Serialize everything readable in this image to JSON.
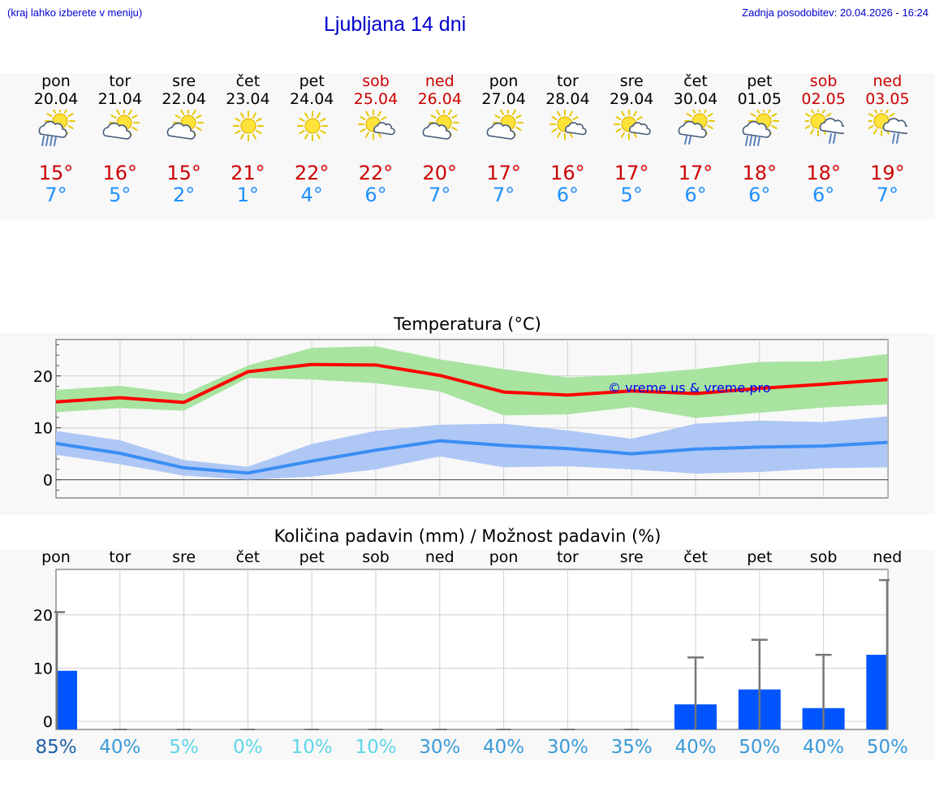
{
  "header": {
    "note": "(kraj lahko izberete v meniju)",
    "title": "Ljubljana 14 dni",
    "updated": "Zadnja posodobitev: 20.04.2026 - 16:24"
  },
  "colors": {
    "max": "#cc0000",
    "min": "#1e90ff",
    "weekend": "#cc0000",
    "link": "#0000cc",
    "precip_bar": "#0055ff"
  },
  "days": [
    {
      "name": "pon",
      "date": "20.04",
      "weekend": false,
      "icon": "sun-cloud-rain-icon",
      "max": "15°",
      "min": "7°"
    },
    {
      "name": "tor",
      "date": "21.04",
      "weekend": false,
      "icon": "sun-cloud-icon",
      "max": "16°",
      "min": "5°"
    },
    {
      "name": "sre",
      "date": "22.04",
      "weekend": false,
      "icon": "sun-cloud-icon",
      "max": "15°",
      "min": "2°"
    },
    {
      "name": "čet",
      "date": "23.04",
      "weekend": false,
      "icon": "sun-icon",
      "max": "21°",
      "min": "1°"
    },
    {
      "name": "pet",
      "date": "24.04",
      "weekend": false,
      "icon": "sun-icon",
      "max": "22°",
      "min": "4°"
    },
    {
      "name": "sob",
      "date": "25.04",
      "weekend": true,
      "icon": "sun-small-cloud-icon",
      "max": "22°",
      "min": "6°"
    },
    {
      "name": "ned",
      "date": "26.04",
      "weekend": true,
      "icon": "sun-cloud-icon",
      "max": "20°",
      "min": "7°"
    },
    {
      "name": "pon",
      "date": "27.04",
      "weekend": false,
      "icon": "sun-cloud-icon",
      "max": "17°",
      "min": "7°"
    },
    {
      "name": "tor",
      "date": "28.04",
      "weekend": false,
      "icon": "sun-small-cloud-icon",
      "max": "16°",
      "min": "6°"
    },
    {
      "name": "sre",
      "date": "29.04",
      "weekend": false,
      "icon": "sun-small-cloud-icon",
      "max": "17°",
      "min": "5°"
    },
    {
      "name": "čet",
      "date": "30.04",
      "weekend": false,
      "icon": "sun-cloud-light-rain-icon",
      "max": "17°",
      "min": "6°"
    },
    {
      "name": "pet",
      "date": "01.05",
      "weekend": false,
      "icon": "sun-cloud-rain-icon",
      "max": "18°",
      "min": "6°"
    },
    {
      "name": "sob",
      "date": "02.05",
      "weekend": true,
      "icon": "sun-cloud-shower-icon",
      "max": "18°",
      "min": "6°"
    },
    {
      "name": "ned",
      "date": "03.05",
      "weekend": true,
      "icon": "sun-cloud-shower-icon",
      "max": "19°",
      "min": "7°"
    }
  ],
  "chart_data": [
    {
      "type": "line",
      "title": "Temperatura (°C)",
      "watermark": "© vreme.us & vreme.pro",
      "x": [
        "20.04",
        "21.04",
        "22.04",
        "23.04",
        "24.04",
        "25.04",
        "26.04",
        "27.04",
        "28.04",
        "29.04",
        "30.04",
        "01.05",
        "02.05",
        "03.05"
      ],
      "ylim": [
        -3.5,
        27
      ],
      "yticks": [
        0,
        10,
        20
      ],
      "grid": true,
      "series": [
        {
          "role": "max",
          "color": "#ff0000",
          "values": [
            15,
            15.8,
            14.9,
            20.8,
            22.2,
            22.1,
            20.1,
            16.9,
            16.3,
            17.1,
            16.6,
            17.6,
            18.4,
            19.3
          ]
        },
        {
          "role": "max-range",
          "color": "#a8e4a0",
          "lower": [
            13,
            13.8,
            13.3,
            19.6,
            19.3,
            18.6,
            17,
            12.4,
            12.6,
            14,
            11.9,
            12.9,
            13.9,
            14.5
          ],
          "upper": [
            17.3,
            18.1,
            16.5,
            22,
            25.4,
            25.7,
            23.2,
            21.3,
            19.7,
            20.3,
            21.3,
            22.7,
            22.8,
            24.2
          ]
        },
        {
          "role": "min",
          "color": "#3a8ef5",
          "values": [
            7,
            5.1,
            2.3,
            1.3,
            3.6,
            5.7,
            7.5,
            6.6,
            6,
            5,
            5.9,
            6.3,
            6.5,
            7.2
          ]
        },
        {
          "role": "min-range",
          "color": "#aec7f5",
          "lower": [
            4.8,
            3,
            0.8,
            0,
            0.6,
            2,
            4.5,
            2.4,
            2.6,
            2,
            1.2,
            1.5,
            2.2,
            2.4
          ],
          "upper": [
            9.4,
            7.6,
            3.8,
            2.5,
            6.9,
            9.4,
            10.6,
            10.8,
            9.5,
            7.9,
            10.8,
            11.4,
            11.1,
            12.2
          ]
        }
      ]
    },
    {
      "type": "bar",
      "title": "Količina padavin (mm) / Možnost padavin (%)",
      "categories": [
        "pon",
        "tor",
        "sre",
        "čet",
        "pet",
        "sob",
        "ned",
        "pon",
        "tor",
        "sre",
        "čet",
        "pet",
        "sob",
        "ned"
      ],
      "values": [
        9.5,
        0,
        0,
        0,
        0,
        0,
        0,
        0,
        0,
        0,
        3.2,
        6,
        2.5,
        12.5
      ],
      "error_high": [
        20.5,
        0,
        0,
        0,
        0,
        0,
        0,
        0,
        0,
        0,
        12,
        15.3,
        12.5,
        26.5
      ],
      "ylim": [
        -1.5,
        28.5
      ],
      "yticks": [
        0,
        10,
        20
      ],
      "probabilities": [
        "85%",
        "40%",
        "5%",
        "0%",
        "10%",
        "10%",
        "30%",
        "40%",
        "30%",
        "35%",
        "40%",
        "50%",
        "40%",
        "50%"
      ],
      "probability_colors": [
        "#1e5fa8",
        "#3a9ad9",
        "#5dd6e8",
        "#5dd6e8",
        "#5dd6e8",
        "#5dd6e8",
        "#3a9ad9",
        "#3a9ad9",
        "#3a9ad9",
        "#3a9ad9",
        "#3a9ad9",
        "#3a9ad9",
        "#3a9ad9",
        "#3a9ad9"
      ]
    }
  ]
}
